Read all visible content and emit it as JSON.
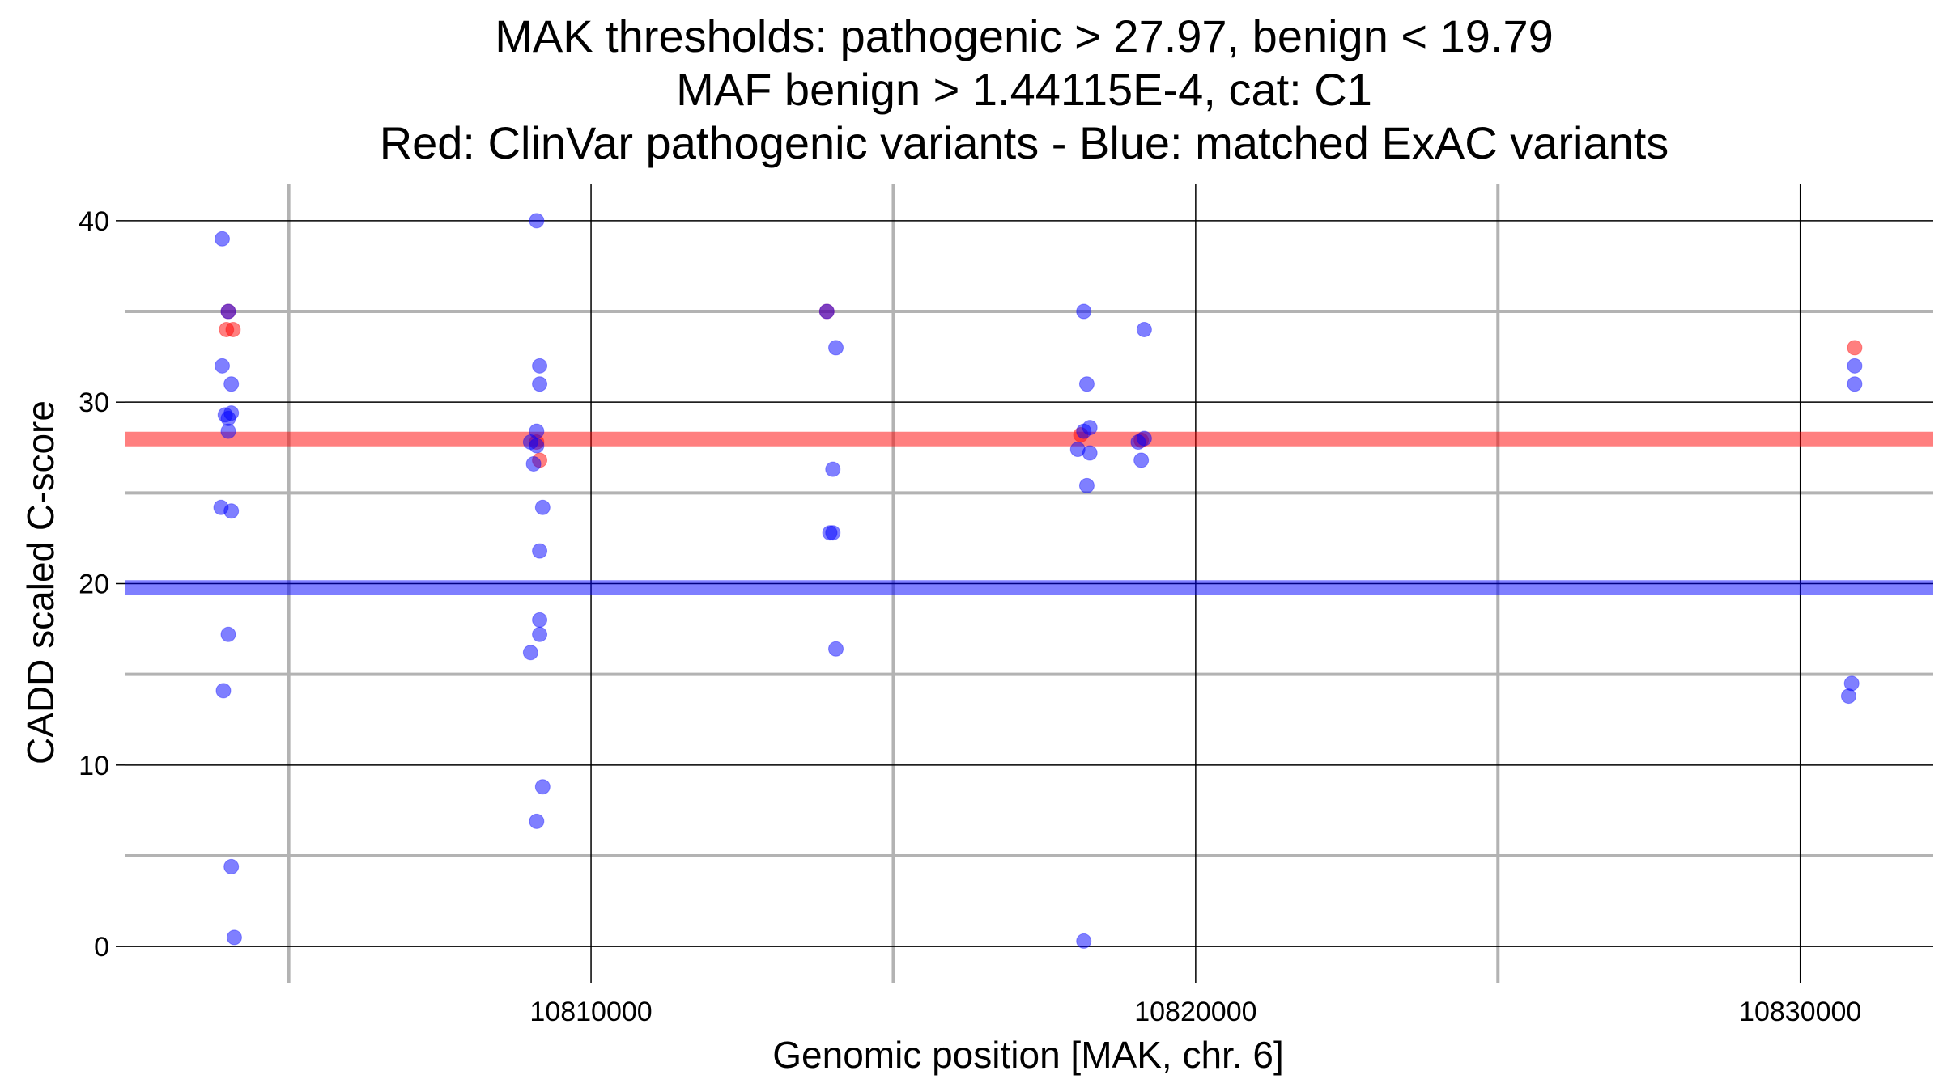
{
  "chart_data": {
    "type": "scatter",
    "title": [
      "MAK thresholds: pathogenic > 27.97, benign < 19.79",
      "MAF benign > 1.44115E-4, cat: C1",
      "Red: ClinVar pathogenic variants - Blue: matched ExAC variants"
    ],
    "xlabel": "Genomic position [MAK, chr. 6]",
    "ylabel": "CADD scaled C-score",
    "xlim": [
      10802300,
      10832200
    ],
    "ylim": [
      -2,
      42
    ],
    "x_ticks": [
      10810000,
      10820000,
      10830000
    ],
    "x_tick_labels": [
      "10810000",
      "10820000",
      "10830000"
    ],
    "x_minor_grid": [
      10805000,
      10815000,
      10825000
    ],
    "y_ticks": [
      0,
      10,
      20,
      30,
      40
    ],
    "y_tick_labels": [
      "0",
      "10",
      "20",
      "30",
      "40"
    ],
    "y_minor_grid": [
      5,
      15,
      25,
      35
    ],
    "grid": true,
    "legend": "none",
    "thresholds": [
      {
        "name": "pathogenic",
        "value": 27.97,
        "color": "#ff0000"
      },
      {
        "name": "benign",
        "value": 19.79,
        "color": "#0000ff"
      }
    ],
    "colors": {
      "pathogenic": "#ff0000",
      "benign": "#0000ff",
      "major_grid": "#000000",
      "minor_grid": "#b3b3b3"
    },
    "series": [
      {
        "color": "#ff0000",
        "points": [
          [
            10804000,
            35
          ],
          [
            10804080,
            34
          ],
          [
            10803970,
            34
          ],
          [
            10809100,
            27.8
          ],
          [
            10809150,
            26.8
          ],
          [
            10813900,
            35
          ],
          [
            10818100,
            28.2
          ],
          [
            10819100,
            27.9
          ],
          [
            10830900,
            33
          ]
        ]
      },
      {
        "color": "#0000ff",
        "points": [
          [
            10803900,
            39
          ],
          [
            10804000,
            35
          ],
          [
            10803900,
            32
          ],
          [
            10804050,
            31
          ],
          [
            10803950,
            29.3
          ],
          [
            10804000,
            29.1
          ],
          [
            10804050,
            29.4
          ],
          [
            10804000,
            28.4
          ],
          [
            10803880,
            24.2
          ],
          [
            10804050,
            24
          ],
          [
            10804000,
            17.2
          ],
          [
            10803920,
            14.1
          ],
          [
            10804050,
            4.4
          ],
          [
            10804100,
            0.5
          ],
          [
            10809100,
            40
          ],
          [
            10809150,
            32
          ],
          [
            10809150,
            31
          ],
          [
            10809100,
            28.4
          ],
          [
            10809000,
            27.8
          ],
          [
            10809100,
            27.6
          ],
          [
            10809050,
            26.6
          ],
          [
            10809200,
            24.2
          ],
          [
            10809150,
            21.8
          ],
          [
            10809150,
            18
          ],
          [
            10809150,
            17.2
          ],
          [
            10809000,
            16.2
          ],
          [
            10809200,
            8.8
          ],
          [
            10809100,
            6.9
          ],
          [
            10813900,
            35
          ],
          [
            10814050,
            33
          ],
          [
            10814000,
            26.3
          ],
          [
            10813950,
            22.8
          ],
          [
            10814000,
            22.8
          ],
          [
            10814050,
            16.4
          ],
          [
            10818150,
            35
          ],
          [
            10818200,
            31
          ],
          [
            10818150,
            28.4
          ],
          [
            10818250,
            28.6
          ],
          [
            10818050,
            27.4
          ],
          [
            10818250,
            27.2
          ],
          [
            10818200,
            25.4
          ],
          [
            10818150,
            0.3
          ],
          [
            10819150,
            34
          ],
          [
            10819150,
            28
          ],
          [
            10819050,
            27.8
          ],
          [
            10819100,
            26.8
          ],
          [
            10830900,
            32
          ],
          [
            10830900,
            31
          ],
          [
            10830850,
            14.5
          ],
          [
            10830800,
            13.8
          ]
        ]
      }
    ]
  }
}
